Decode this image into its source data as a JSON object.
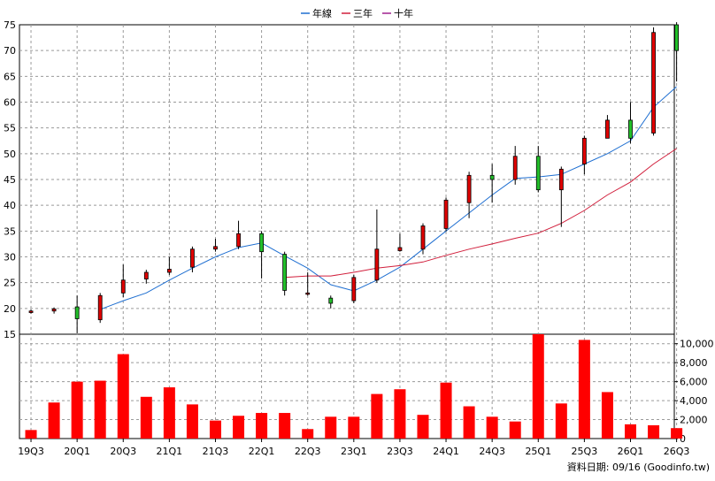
{
  "chart_data": {
    "type": "candlestick_with_volume",
    "legend": [
      {
        "name": "年線",
        "color": "#1f6fd1"
      },
      {
        "name": "三年",
        "color": "#d11f3c"
      },
      {
        "name": "十年",
        "color": "#a0208f"
      }
    ],
    "x_tick_labels": [
      "19Q3",
      "20Q1",
      "20Q3",
      "21Q1",
      "21Q3",
      "22Q1",
      "22Q3",
      "23Q1",
      "23Q3",
      "24Q1",
      "24Q3",
      "25Q1",
      "25Q3",
      "26Q1",
      "26Q3"
    ],
    "price_axis": {
      "min": 15,
      "max": 75,
      "ticks": [
        15,
        20,
        25,
        30,
        35,
        40,
        45,
        50,
        55,
        60,
        65,
        70,
        75
      ]
    },
    "volume_axis": {
      "min": 0,
      "max": 11000,
      "ticks": [
        0,
        2000,
        4000,
        6000,
        8000,
        10000
      ],
      "tick_labels": [
        "0",
        "2,000",
        "4,000",
        "6,000",
        "8,000",
        "10,000"
      ]
    },
    "colors": {
      "up": "#e00000",
      "down": "#22c02a",
      "volume": "#ff0000",
      "grid": "#9a9a9a"
    },
    "quarters": [
      "19Q3",
      "19Q4",
      "20Q1",
      "20Q2",
      "20Q3",
      "20Q4",
      "21Q1",
      "21Q2",
      "21Q3",
      "21Q4",
      "22Q1",
      "22Q2",
      "22Q3",
      "22Q4",
      "23Q1",
      "23Q2",
      "23Q3",
      "23Q4",
      "24Q1",
      "24Q2",
      "24Q3",
      "24Q4",
      "25Q1",
      "25Q2",
      "25Q3",
      "25Q4",
      "26Q1",
      "26Q2",
      "26Q3"
    ],
    "candles": [
      {
        "o": 19.2,
        "h": 19.8,
        "l": 19.0,
        "c": 19.5
      },
      {
        "o": 19.5,
        "h": 20.2,
        "l": 19.0,
        "c": 19.9
      },
      {
        "o": 20.3,
        "h": 22.5,
        "l": 15.2,
        "c": 18.0
      },
      {
        "o": 17.8,
        "h": 23.0,
        "l": 17.2,
        "c": 22.5
      },
      {
        "o": 23.0,
        "h": 28.5,
        "l": 22.2,
        "c": 25.5
      },
      {
        "o": 25.7,
        "h": 27.5,
        "l": 24.8,
        "c": 27.0
      },
      {
        "o": 27.0,
        "h": 30.0,
        "l": 26.5,
        "c": 27.6
      },
      {
        "o": 28.0,
        "h": 32.0,
        "l": 27.0,
        "c": 31.5
      },
      {
        "o": 31.5,
        "h": 33.5,
        "l": 31.0,
        "c": 32.0
      },
      {
        "o": 32.0,
        "h": 37.0,
        "l": 31.5,
        "c": 34.5
      },
      {
        "o": 34.5,
        "h": 35.0,
        "l": 25.8,
        "c": 31.0
      },
      {
        "o": 30.5,
        "h": 31.0,
        "l": 22.5,
        "c": 23.5
      },
      {
        "o": 22.8,
        "h": 27.0,
        "l": 22.5,
        "c": 23.0
      },
      {
        "o": 22.0,
        "h": 22.5,
        "l": 20.0,
        "c": 21.0
      },
      {
        "o": 21.5,
        "h": 26.5,
        "l": 21.0,
        "c": 26.0
      },
      {
        "o": 25.5,
        "h": 39.2,
        "l": 25.0,
        "c": 31.5
      },
      {
        "o": 31.2,
        "h": 34.5,
        "l": 31.0,
        "c": 31.8
      },
      {
        "o": 31.5,
        "h": 36.5,
        "l": 30.5,
        "c": 36.0
      },
      {
        "o": 35.5,
        "h": 41.5,
        "l": 35.0,
        "c": 41.0
      },
      {
        "o": 40.5,
        "h": 46.5,
        "l": 37.5,
        "c": 45.8
      },
      {
        "o": 45.8,
        "h": 48.0,
        "l": 40.5,
        "c": 45.0
      },
      {
        "o": 45.0,
        "h": 51.5,
        "l": 44.0,
        "c": 49.5
      },
      {
        "o": 49.5,
        "h": 51.5,
        "l": 42.5,
        "c": 43.0
      },
      {
        "o": 43.0,
        "h": 47.5,
        "l": 35.8,
        "c": 47.0
      },
      {
        "o": 48.0,
        "h": 53.5,
        "l": 46.0,
        "c": 53.0
      },
      {
        "o": 53.0,
        "h": 57.5,
        "l": 53.0,
        "c": 56.5
      },
      {
        "o": 56.5,
        "h": 60.0,
        "l": 52.0,
        "c": 53.0
      },
      {
        "o": 54.0,
        "h": 74.5,
        "l": 53.5,
        "c": 73.5
      },
      {
        "o": 75.0,
        "h": 75.5,
        "l": 64.0,
        "c": 70.0
      }
    ],
    "volume": [
      900,
      3800,
      6000,
      6100,
      8900,
      4400,
      5400,
      3600,
      1900,
      2400,
      2700,
      2700,
      1000,
      2300,
      2300,
      4700,
      5200,
      2500,
      5900,
      3400,
      2300,
      1800,
      11000,
      3700,
      10400,
      4900,
      1500,
      1400,
      1100
    ],
    "series_lines": [
      {
        "name": "年線",
        "points": [
          [
            3,
            19.8
          ],
          [
            4,
            21.5
          ],
          [
            5,
            23.0
          ],
          [
            6,
            25.5
          ],
          [
            7,
            27.8
          ],
          [
            8,
            30.0
          ],
          [
            9,
            31.8
          ],
          [
            10,
            32.7
          ],
          [
            11,
            30.2
          ],
          [
            12,
            27.8
          ],
          [
            13,
            24.6
          ],
          [
            14,
            23.4
          ],
          [
            15,
            25.5
          ],
          [
            16,
            28.0
          ],
          [
            17,
            31.5
          ],
          [
            18,
            35.0
          ],
          [
            19,
            38.5
          ],
          [
            20,
            42.0
          ],
          [
            21,
            45.2
          ],
          [
            22,
            45.5
          ],
          [
            23,
            46.0
          ],
          [
            24,
            48.0
          ],
          [
            25,
            50.0
          ],
          [
            26,
            52.5
          ],
          [
            27,
            59.0
          ],
          [
            28,
            63.0
          ]
        ]
      },
      {
        "name": "三年",
        "points": [
          [
            11,
            26.0
          ],
          [
            12,
            26.3
          ],
          [
            13,
            26.3
          ],
          [
            14,
            27.0
          ],
          [
            15,
            27.8
          ],
          [
            16,
            28.3
          ],
          [
            17,
            29.0
          ],
          [
            18,
            30.3
          ],
          [
            19,
            31.5
          ],
          [
            20,
            32.5
          ],
          [
            21,
            33.6
          ],
          [
            22,
            34.6
          ],
          [
            23,
            36.5
          ],
          [
            24,
            39.0
          ],
          [
            25,
            42.0
          ],
          [
            26,
            44.5
          ],
          [
            27,
            48.0
          ],
          [
            28,
            51.0
          ]
        ]
      }
    ],
    "footer": "資料日期: 09/16  (Goodinfo.tw)"
  }
}
